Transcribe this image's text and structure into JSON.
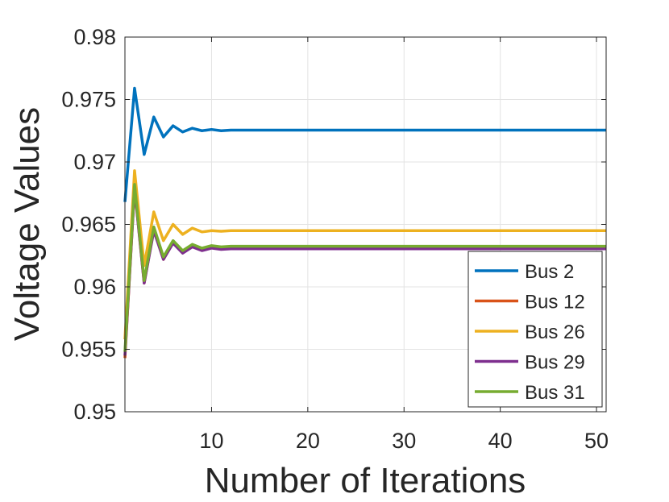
{
  "chart_data": {
    "type": "line",
    "xlabel": "Number of Iterations",
    "ylabel": "Voltage Values",
    "xlim": [
      1,
      51
    ],
    "ylim": [
      0.95,
      0.98
    ],
    "xticks": [
      10,
      20,
      30,
      40,
      50
    ],
    "yticks": [
      0.95,
      0.955,
      0.96,
      0.965,
      0.97,
      0.975,
      0.98
    ],
    "ytick_labels": [
      "0.95",
      "0.955",
      "0.96",
      "0.965",
      "0.97",
      "0.975",
      "0.98"
    ],
    "grid": true,
    "legend_position": "bottom-right",
    "x": [
      1,
      2,
      3,
      4,
      5,
      6,
      7,
      8,
      9,
      10,
      11,
      12,
      13,
      14,
      15,
      16,
      17,
      18,
      19,
      20,
      21,
      22,
      23,
      24,
      25,
      26,
      27,
      28,
      29,
      30,
      31,
      32,
      33,
      34,
      35,
      36,
      37,
      38,
      39,
      40,
      41,
      42,
      43,
      44,
      45,
      46,
      47,
      48,
      49,
      50,
      51
    ],
    "series": [
      {
        "name": "Bus 2",
        "color": "#0072BD",
        "values": [
          0.9668,
          0.9759,
          0.9706,
          0.9736,
          0.972,
          0.9729,
          0.9724,
          0.9727,
          0.9725,
          0.9726,
          0.9725,
          0.97255,
          0.97255,
          0.97255,
          0.97255,
          0.97255,
          0.97255,
          0.97255,
          0.97255,
          0.97255,
          0.97255,
          0.97255,
          0.97255,
          0.97255,
          0.97255,
          0.97255,
          0.97255,
          0.97255,
          0.97255,
          0.97255,
          0.97255,
          0.97255,
          0.97255,
          0.97255,
          0.97255,
          0.97255,
          0.97255,
          0.97255,
          0.97255,
          0.97255,
          0.97255,
          0.97255,
          0.97255,
          0.97255,
          0.97255,
          0.97255,
          0.97255,
          0.97255,
          0.97255,
          0.97255,
          0.97255
        ]
      },
      {
        "name": "Bus 12",
        "color": "#D95319",
        "values": [
          0.9543,
          0.968,
          0.9603,
          0.9646,
          0.9622,
          0.9636,
          0.9628,
          0.9633,
          0.963,
          0.9632,
          0.9631,
          0.9631,
          0.9631,
          0.9631,
          0.9631,
          0.9631,
          0.9631,
          0.9631,
          0.9631,
          0.9631,
          0.9631,
          0.9631,
          0.9631,
          0.9631,
          0.9631,
          0.9631,
          0.9631,
          0.9631,
          0.9631,
          0.9631,
          0.9631,
          0.9631,
          0.9631,
          0.9631,
          0.9631,
          0.9631,
          0.9631,
          0.9631,
          0.9631,
          0.9631,
          0.9631,
          0.9631,
          0.9631,
          0.9631,
          0.9631,
          0.9631,
          0.9631,
          0.9631,
          0.9631,
          0.9631,
          0.9631
        ]
      },
      {
        "name": "Bus 26",
        "color": "#EDB120",
        "values": [
          0.9558,
          0.9693,
          0.9617,
          0.966,
          0.9637,
          0.965,
          0.9642,
          0.9647,
          0.9644,
          0.9645,
          0.96445,
          0.9645,
          0.9645,
          0.9645,
          0.9645,
          0.9645,
          0.9645,
          0.9645,
          0.9645,
          0.9645,
          0.9645,
          0.9645,
          0.9645,
          0.9645,
          0.9645,
          0.9645,
          0.9645,
          0.9645,
          0.9645,
          0.9645,
          0.9645,
          0.9645,
          0.9645,
          0.9645,
          0.9645,
          0.9645,
          0.9645,
          0.9645,
          0.9645,
          0.9645,
          0.9645,
          0.9645,
          0.9645,
          0.9645,
          0.9645,
          0.9645,
          0.9645,
          0.9645,
          0.9645,
          0.9645,
          0.9645
        ]
      },
      {
        "name": "Bus 29",
        "color": "#7E2F8E",
        "values": [
          0.9545,
          0.9679,
          0.9603,
          0.9645,
          0.9622,
          0.9635,
          0.9627,
          0.9632,
          0.9629,
          0.9631,
          0.963,
          0.96305,
          0.96305,
          0.96305,
          0.96305,
          0.96305,
          0.96305,
          0.96305,
          0.96305,
          0.96305,
          0.96305,
          0.96305,
          0.96305,
          0.96305,
          0.96305,
          0.96305,
          0.96305,
          0.96305,
          0.96305,
          0.96305,
          0.96305,
          0.96305,
          0.96305,
          0.96305,
          0.96305,
          0.96305,
          0.96305,
          0.96305,
          0.96305,
          0.96305,
          0.96305,
          0.96305,
          0.96305,
          0.96305,
          0.96305,
          0.96305,
          0.96305,
          0.96305,
          0.96305,
          0.96305,
          0.96305
        ]
      },
      {
        "name": "Bus 31",
        "color": "#77AC30",
        "values": [
          0.9548,
          0.9682,
          0.9605,
          0.9648,
          0.9624,
          0.9637,
          0.9629,
          0.9634,
          0.9631,
          0.9633,
          0.9632,
          0.96325,
          0.96325,
          0.96325,
          0.96325,
          0.96325,
          0.96325,
          0.96325,
          0.96325,
          0.96325,
          0.96325,
          0.96325,
          0.96325,
          0.96325,
          0.96325,
          0.96325,
          0.96325,
          0.96325,
          0.96325,
          0.96325,
          0.96325,
          0.96325,
          0.96325,
          0.96325,
          0.96325,
          0.96325,
          0.96325,
          0.96325,
          0.96325,
          0.96325,
          0.96325,
          0.96325,
          0.96325,
          0.96325,
          0.96325,
          0.96325,
          0.96325,
          0.96325,
          0.96325,
          0.96325,
          0.96325
        ]
      }
    ]
  }
}
